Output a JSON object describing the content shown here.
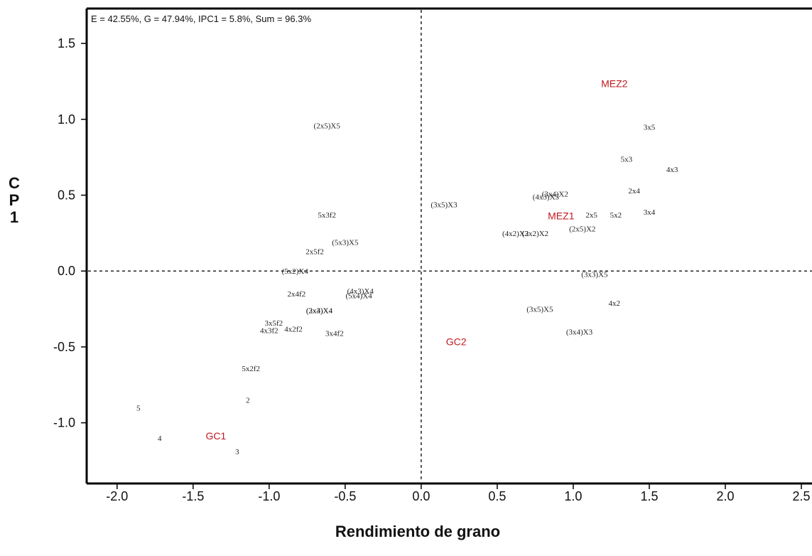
{
  "chart_data": {
    "type": "scatter",
    "title": "",
    "annotation": "E = 42.55%, G = 47.94%, IPC1 = 5.8%, Sum = 96.3%",
    "xlabel": "Rendimiento de grano",
    "ylabel_lines": [
      "C",
      "P",
      "1"
    ],
    "xlim": [
      -2.2,
      2.57
    ],
    "ylim": [
      -1.4,
      1.73
    ],
    "x_ticks": [
      -2.0,
      -1.5,
      -1.0,
      -0.5,
      0.0,
      0.5,
      1.0,
      1.5,
      2.0,
      2.5
    ],
    "x_tick_labels": [
      "-2.0",
      "-1.5",
      "-1.0",
      "-0.5",
      "0.0",
      "0.5",
      "1.0",
      "1.5",
      "2.0",
      "2.5"
    ],
    "y_ticks": [
      1.5,
      1.0,
      0.5,
      0.0,
      -0.5,
      -1.0
    ],
    "y_tick_labels": [
      "1.5",
      "1.0",
      "0.5",
      "0.0",
      "-0.5",
      "-1.0"
    ],
    "grid": false,
    "reference_lines": {
      "x": 0.0,
      "y": 0.0,
      "style": "dashed"
    },
    "colors": {
      "genotype": "#222222",
      "environment": "#c0191f",
      "axis": "#000000"
    },
    "series": [
      {
        "name": "genotypes",
        "points": [
          {
            "label": "(2x5)X5",
            "x": -0.62,
            "y": 0.96
          },
          {
            "label": "3x5",
            "x": 1.5,
            "y": 0.95
          },
          {
            "label": "5x3",
            "x": 1.35,
            "y": 0.74
          },
          {
            "label": "4x3",
            "x": 1.65,
            "y": 0.67
          },
          {
            "label": "2x4",
            "x": 1.4,
            "y": 0.53
          },
          {
            "label": "(3x4)X2",
            "x": 0.88,
            "y": 0.51
          },
          {
            "label": "(4x3)X5",
            "x": 0.82,
            "y": 0.49
          },
          {
            "label": "(3x5)X3",
            "x": 0.15,
            "y": 0.44
          },
          {
            "label": "5x3f2",
            "x": -0.62,
            "y": 0.37
          },
          {
            "label": "3x4",
            "x": 1.5,
            "y": 0.39
          },
          {
            "label": "2x5",
            "x": 1.12,
            "y": 0.37
          },
          {
            "label": "5x2",
            "x": 1.28,
            "y": 0.37
          },
          {
            "label": "(2x5)X2",
            "x": 1.06,
            "y": 0.28
          },
          {
            "label": "(4x2)X2",
            "x": 0.62,
            "y": 0.25
          },
          {
            "label": "(3x2)X2",
            "x": 0.75,
            "y": 0.25
          },
          {
            "label": "(5x3)X5",
            "x": -0.5,
            "y": 0.19
          },
          {
            "label": "2x5f2",
            "x": -0.7,
            "y": 0.13
          },
          {
            "label": "(5x2)X4",
            "x": -0.83,
            "y": 0.0
          },
          {
            "label": "(3x3)X5",
            "x": 1.14,
            "y": -0.02
          },
          {
            "label": "2x4f2",
            "x": -0.82,
            "y": -0.15
          },
          {
            "label": "(4x3)X4",
            "x": -0.4,
            "y": -0.13
          },
          {
            "label": "(5x4)X4",
            "x": -0.41,
            "y": -0.16
          },
          {
            "label": "(3x4)X4",
            "x": -0.67,
            "y": -0.26
          },
          {
            "label": "(2x3)X4",
            "x": -0.67,
            "y": -0.26
          },
          {
            "label": "(3x5)X5",
            "x": 0.78,
            "y": -0.25
          },
          {
            "label": "4x2",
            "x": 1.27,
            "y": -0.21
          },
          {
            "label": "3x5f2",
            "x": -0.97,
            "y": -0.34
          },
          {
            "label": "4x2f2",
            "x": -0.84,
            "y": -0.38
          },
          {
            "label": "4x3f2",
            "x": -1.0,
            "y": -0.39
          },
          {
            "label": "3x4f2",
            "x": -0.57,
            "y": -0.41
          },
          {
            "label": "(3x4)X3",
            "x": 1.04,
            "y": -0.4
          },
          {
            "label": "5x2f2",
            "x": -1.12,
            "y": -0.64
          },
          {
            "label": "2",
            "x": -1.14,
            "y": -0.85
          },
          {
            "label": "5",
            "x": -1.86,
            "y": -0.9
          },
          {
            "label": "4",
            "x": -1.72,
            "y": -1.1
          },
          {
            "label": "3",
            "x": -1.21,
            "y": -1.19
          }
        ]
      },
      {
        "name": "environments",
        "points": [
          {
            "label": "MEZ2",
            "x": 1.27,
            "y": 1.23
          },
          {
            "label": "MEZ1",
            "x": 0.92,
            "y": 0.36
          },
          {
            "label": "GC2",
            "x": 0.23,
            "y": -0.47
          },
          {
            "label": "GC1",
            "x": -1.35,
            "y": -1.09
          }
        ]
      }
    ]
  }
}
